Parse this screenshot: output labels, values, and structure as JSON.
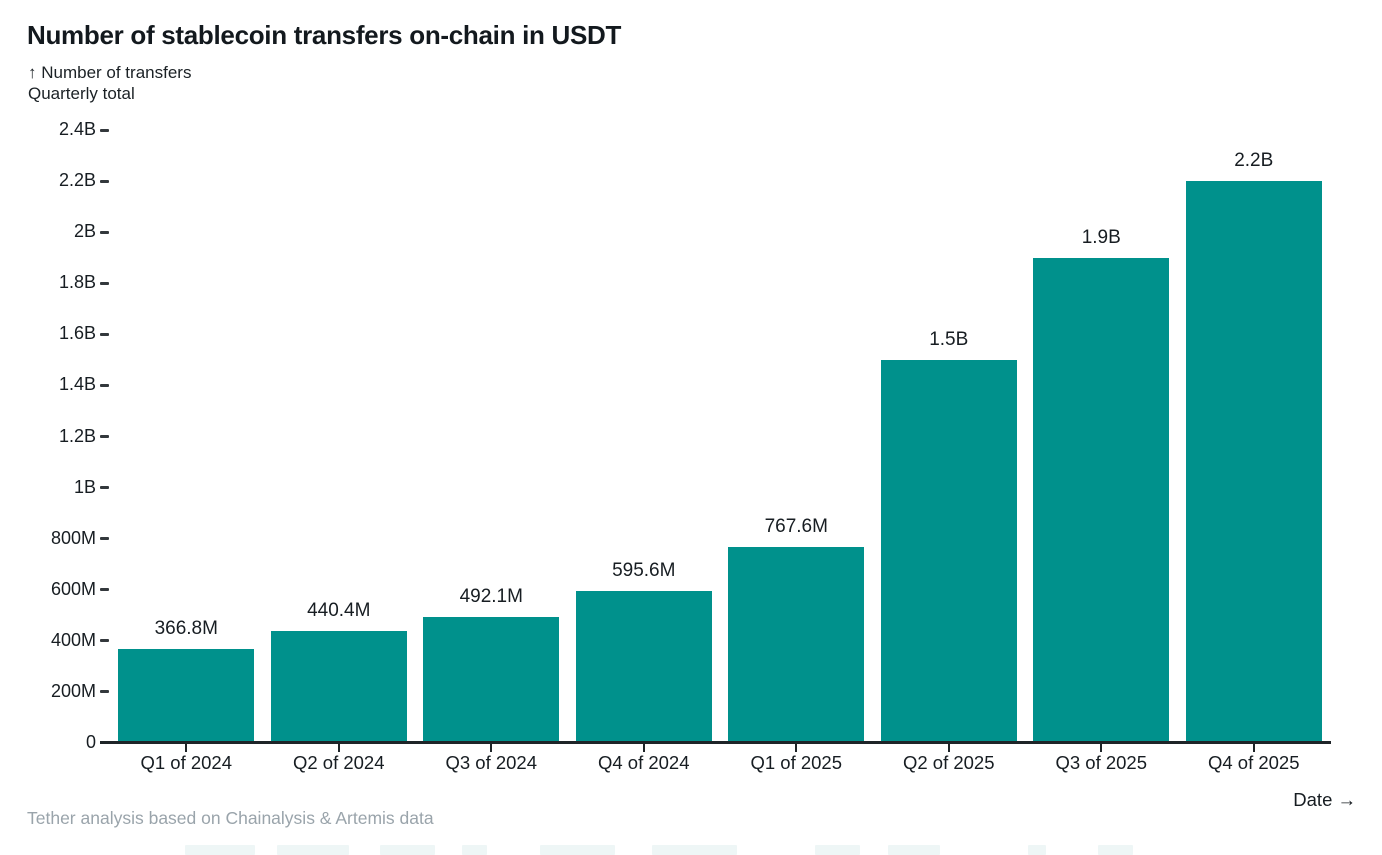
{
  "header": {
    "title": "Number of stablecoin transfers on-chain in USDT",
    "y_axis_note": "↑ Number of transfers",
    "subtitle": "Quarterly total"
  },
  "chart_data": {
    "type": "bar",
    "title": "Number of stablecoin transfers on-chain in USDT",
    "subtitle": "Quarterly total",
    "ylabel": "Number of transfers",
    "xlabel": "Date",
    "categories": [
      "Q1 of 2024",
      "Q2 of 2024",
      "Q3 of 2024",
      "Q4 of 2024",
      "Q1 of 2025",
      "Q2 of 2025",
      "Q3 of 2025",
      "Q4 of 2025"
    ],
    "values_millions": [
      366.8,
      440.4,
      492.1,
      595.6,
      767.6,
      1500,
      1900,
      2200
    ],
    "bar_labels": [
      "366.8M",
      "440.4M",
      "492.1M",
      "595.6M",
      "767.6M",
      "1.5B",
      "1.9B",
      "2.2B"
    ],
    "y_ticks": [
      "0",
      "200M",
      "400M",
      "600M",
      "800M",
      "1B",
      "1.2B",
      "1.4B",
      "1.6B",
      "1.8B",
      "2B",
      "2.2B",
      "2.4B"
    ],
    "y_tick_step_millions": 200,
    "ylim_millions": [
      0,
      2400
    ],
    "grid": false,
    "legend": false,
    "bar_color": "#00918C"
  },
  "x_axis_title": "Date →",
  "footer": {
    "source": "Tether analysis based on Chainalysis & Artemis data"
  }
}
